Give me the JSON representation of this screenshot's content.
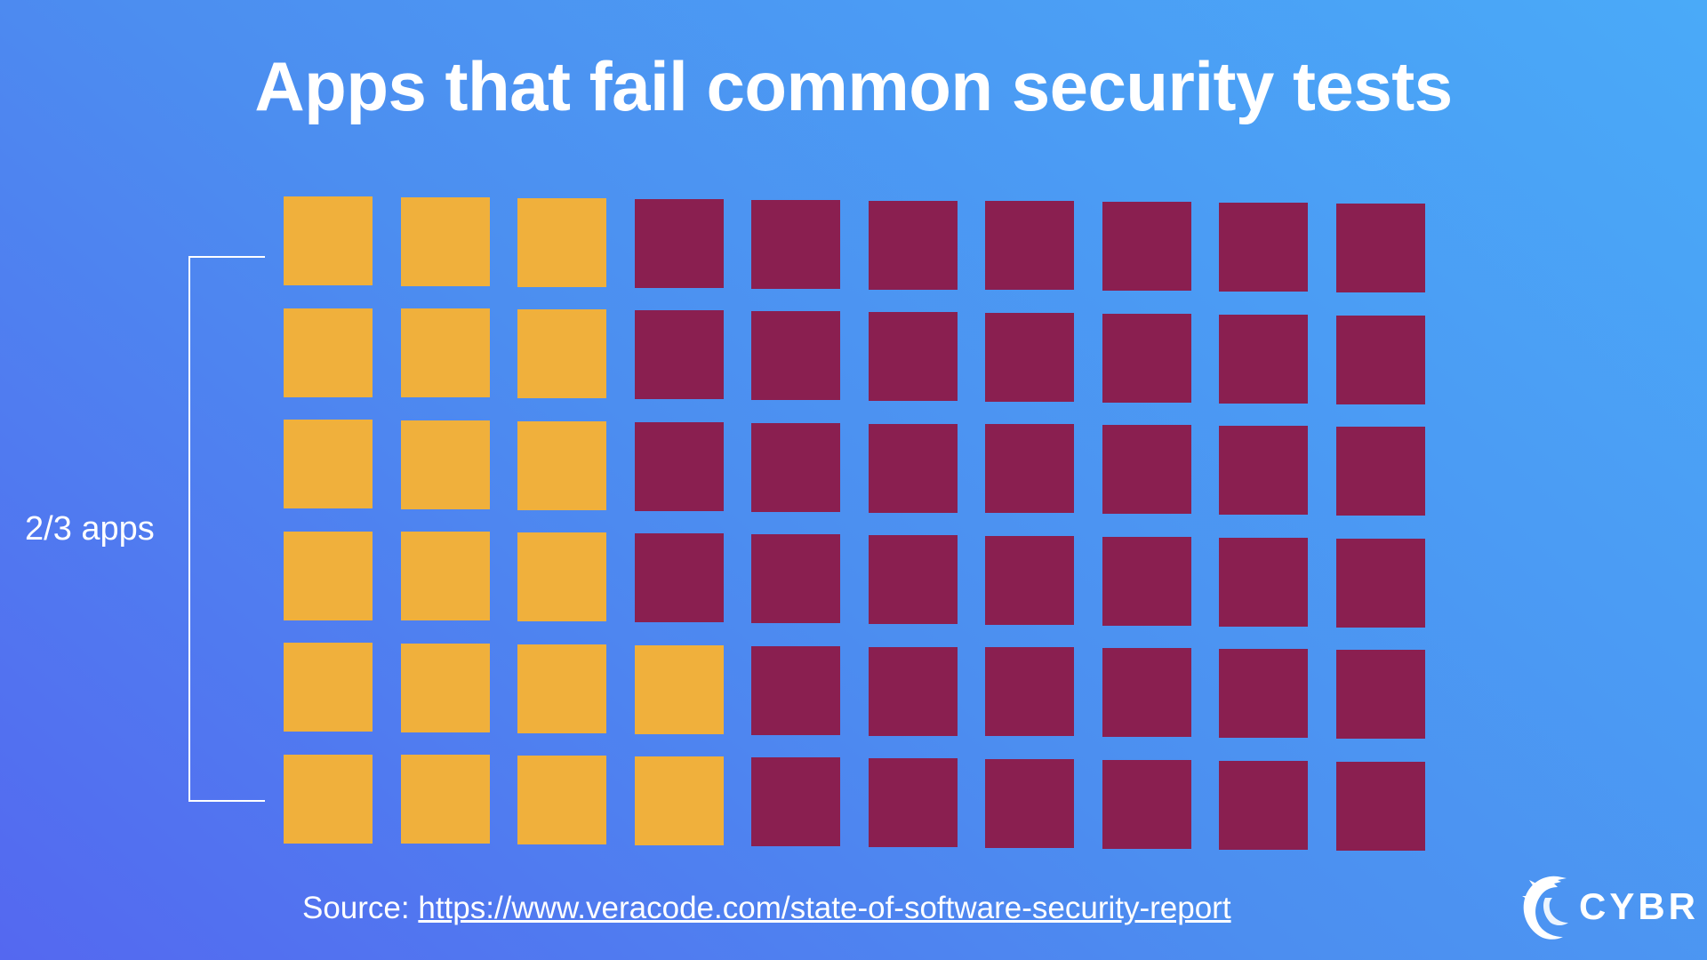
{
  "title": "Apps that fail common security tests",
  "bracket_label": "2/3 apps",
  "source": {
    "prefix": "Source: ",
    "link_text": "https://www.veracode.com/state-of-software-security-report"
  },
  "brand": {
    "name": "CYBR",
    "icon": "cybr-dragon-logo-icon"
  },
  "colors": {
    "fail": "#f0b03c",
    "other": "#8a1f50",
    "text": "#ffffff"
  },
  "waffle": {
    "rows": 6,
    "columns": 10,
    "yellow_per_row": [
      3,
      3,
      3,
      3,
      4,
      4
    ]
  }
}
